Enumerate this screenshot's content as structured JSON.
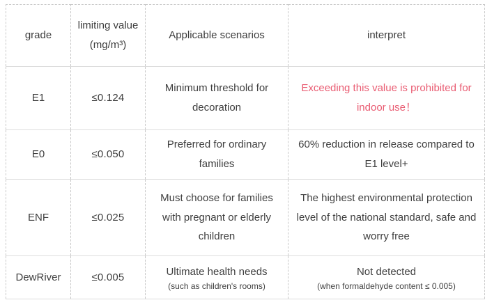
{
  "colors": {
    "body_text": "#3f3f3f",
    "alert_text": "#e95c72",
    "vertical_border": "#c8c8c8",
    "horizontal_border": "#dcdcdc",
    "background": "#ffffff"
  },
  "table": {
    "headers": {
      "grade": "grade",
      "limit": "limiting value (mg/m³)",
      "scenario": "Applicable scenarios",
      "interpret": "interpret"
    },
    "rows": [
      {
        "grade": "E1",
        "limit": "≤0.124",
        "scenario": "Minimum threshold for decoration",
        "interpret": "Exceeding this value is prohibited for indoor use！"
      },
      {
        "grade": "E0",
        "limit": "≤0.050",
        "scenario": "Preferred for ordinary families",
        "interpret": "60% reduction in release compared to E1 level+"
      },
      {
        "grade": "ENF",
        "limit": "≤0.025",
        "scenario": "Must choose for families with pregnant or elderly children",
        "interpret": "The highest environmental protection level of the national standard, safe and worry free"
      },
      {
        "grade": "DewRiver",
        "limit": "≤0.005",
        "scenario": "Ultimate health needs",
        "scenario_note": "(such as children's rooms)",
        "interpret": "Not detected",
        "interpret_note": "(when formaldehyde content ≤ 0.005)"
      }
    ]
  }
}
